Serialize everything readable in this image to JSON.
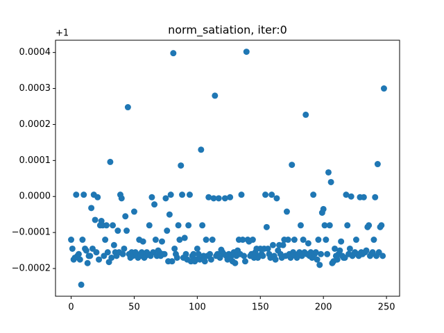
{
  "chart_data": {
    "type": "scatter",
    "title": "norm_satiation, iter:0",
    "y_offset_label": "+1",
    "color": "#1f77b4",
    "x": [
      0,
      1,
      2,
      3,
      4,
      5,
      6,
      7,
      8,
      9,
      10,
      11,
      12,
      13,
      14,
      15,
      16,
      17,
      18,
      19,
      20,
      21,
      22,
      23,
      24,
      25,
      26,
      27,
      28,
      29,
      30,
      31,
      32,
      33,
      34,
      35,
      36,
      37,
      38,
      39,
      40,
      41,
      42,
      43,
      44,
      45,
      46,
      47,
      48,
      49,
      50,
      51,
      52,
      53,
      54,
      55,
      56,
      57,
      58,
      59,
      60,
      61,
      62,
      63,
      64,
      65,
      66,
      67,
      68,
      69,
      70,
      71,
      72,
      73,
      74,
      75,
      76,
      77,
      78,
      79,
      80,
      81,
      82,
      83,
      84,
      85,
      86,
      87,
      88,
      89,
      90,
      91,
      92,
      93,
      94,
      95,
      96,
      97,
      98,
      99,
      100,
      101,
      102,
      103,
      104,
      105,
      106,
      107,
      108,
      109,
      110,
      111,
      112,
      113,
      114,
      115,
      116,
      117,
      118,
      119,
      120,
      121,
      122,
      123,
      124,
      125,
      126,
      127,
      128,
      129,
      130,
      131,
      132,
      133,
      134,
      135,
      136,
      137,
      138,
      139,
      140,
      141,
      142,
      143,
      144,
      145,
      146,
      147,
      148,
      149,
      150,
      151,
      152,
      153,
      154,
      155,
      156,
      157,
      158,
      159,
      160,
      161,
      162,
      163,
      164,
      165,
      166,
      167,
      168,
      169,
      170,
      171,
      172,
      173,
      174,
      175,
      176,
      177,
      178,
      179,
      180,
      181,
      182,
      183,
      184,
      185,
      186,
      187,
      188,
      189,
      190,
      191,
      192,
      193,
      194,
      195,
      196,
      197,
      198,
      199,
      200,
      201,
      202,
      203,
      204,
      205,
      206,
      207,
      208,
      209,
      210,
      211,
      212,
      213,
      214,
      215,
      216,
      217,
      218,
      219,
      220,
      221,
      222,
      223,
      224,
      225,
      226,
      227,
      228,
      229,
      230,
      231,
      232,
      233,
      234,
      235,
      236,
      237,
      238,
      239,
      240,
      241,
      242,
      243,
      244,
      245,
      246,
      247,
      248
    ],
    "values": [
      -0.00012,
      -0.000145,
      -0.000175,
      -0.00017,
      5e-06,
      -0.000165,
      -0.00016,
      -0.000175,
      -0.000245,
      -0.00012,
      5e-06,
      -0.000145,
      -0.00015,
      -0.000185,
      -0.000165,
      -0.000165,
      -3.2e-05,
      -0.000145,
      5e-06,
      -6.5e-05,
      -0.000155,
      -2e-06,
      -0.000175,
      -8e-05,
      -6.8e-05,
      -8e-05,
      -0.000165,
      -0.00012,
      -8e-05,
      -0.000155,
      -0.000182,
      9.6e-05,
      -0.00017,
      -8e-05,
      -0.000135,
      -0.000155,
      -0.000165,
      -9.5e-05,
      -0.000155,
      5e-06,
      -5e-06,
      -0.00016,
      -0.000145,
      -5.5e-05,
      -9.5e-05,
      0.000248,
      -0.00016,
      -0.00017,
      -0.000155,
      -0.000165,
      -4.2e-05,
      -0.000155,
      -0.00016,
      -0.00017,
      -0.00012,
      -0.000165,
      -0.000155,
      -0.000125,
      -0.00017,
      -0.000165,
      -0.000155,
      -0.00016,
      -8e-05,
      -0.000165,
      -2e-06,
      -0.000155,
      -2.2e-05,
      -0.00012,
      -0.000165,
      -0.00015,
      -0.000155,
      -0.000165,
      -0.000125,
      -0.00016,
      -0.00016,
      -5e-06,
      -9.5e-05,
      -0.00018,
      -5e-05,
      5e-06,
      -0.00018,
      0.000398,
      -0.000145,
      -0.00016,
      -0.00017,
      -8e-05,
      -0.00012,
      8.6e-05,
      5e-06,
      -0.00017,
      -0.000115,
      -0.00016,
      -0.000175,
      -8e-05,
      5e-06,
      -0.00018,
      -0.000165,
      -0.00016,
      -0.00018,
      -0.000175,
      -0.000145,
      -0.00016,
      -0.000175,
      0.00013,
      -8e-05,
      -0.000165,
      -0.00018,
      -0.00012,
      -0.000165,
      -2e-06,
      -0.00016,
      -0.000175,
      -0.00012,
      -5e-06,
      0.00028,
      -0.000165,
      -0.00016,
      -5e-06,
      -0.00017,
      -0.000148,
      -0.000155,
      -0.00016,
      -5e-06,
      -0.000165,
      -0.000175,
      -0.00016,
      -2e-06,
      -0.000165,
      -0.00018,
      -0.000155,
      -0.000185,
      -0.000165,
      -0.00015,
      -0.00012,
      -0.00016,
      5e-06,
      -0.00012,
      -0.000165,
      -0.00018,
      0.000402,
      -0.00012,
      -0.000125,
      -0.000165,
      -0.00016,
      -0.00012,
      -0.00017,
      -0.000155,
      -0.000145,
      -0.00017,
      -0.000165,
      -0.000145,
      -0.00016,
      -0.000165,
      -0.000145,
      5e-06,
      -8.5e-05,
      -0.000145,
      -0.00016,
      -0.00017,
      5e-06,
      -0.000135,
      -0.000165,
      -0.000175,
      -5e-06,
      -0.00015,
      -0.000135,
      -0.00016,
      -0.00017,
      -0.000135,
      -0.00012,
      -0.000165,
      -4.2e-05,
      -0.00012,
      -0.00016,
      -0.00017,
      8.8e-05,
      -0.000155,
      -0.00012,
      -0.000165,
      -0.00017,
      -0.00016,
      -0.000155,
      -8e-05,
      -0.000165,
      -0.00012,
      -0.000155,
      0.000227,
      -0.00016,
      -0.00013,
      -0.000165,
      -0.000155,
      -0.00017,
      5e-06,
      -0.00016,
      -0.000155,
      -0.000175,
      -0.00012,
      -0.00019,
      -0.00016,
      -4.5e-05,
      -3.5e-05,
      -8e-05,
      -0.00012,
      -0.00016,
      6.7e-05,
      -8e-05,
      4e-05,
      -0.000185,
      -0.00018,
      -0.000145,
      -0.000165,
      -0.000175,
      -0.00016,
      -0.00015,
      -0.000125,
      -0.000165,
      -0.00017,
      -0.00017,
      5e-06,
      -8e-05,
      -0.00016,
      -0.000145,
      0.0,
      -0.000165,
      -0.00016,
      -0.000155,
      -0.00012,
      -0.00016,
      -0.000165,
      -2e-06,
      -0.000155,
      -0.00016,
      -2e-06,
      -0.000155,
      -0.00015,
      -8.5e-05,
      -8e-05,
      -0.000165,
      -0.00016,
      -0.000155,
      -0.00012,
      -2e-06,
      -0.000165,
      9e-05,
      -0.000155,
      -8.5e-05,
      -8e-05,
      -0.000165,
      0.0003
    ],
    "xlim": [
      -12.4,
      260.4
    ],
    "ylim": [
      -0.000277,
      0.000434
    ],
    "xticks": [
      0,
      50,
      100,
      150,
      200,
      250
    ],
    "yticks": [
      {
        "value": -0.0002,
        "label": "−0.0002"
      },
      {
        "value": -0.0001,
        "label": "−0.0001"
      },
      {
        "value": 0,
        "label": "0.0000"
      },
      {
        "value": 0.0001,
        "label": "0.0001"
      },
      {
        "value": 0.0002,
        "label": "0.0002"
      },
      {
        "value": 0.0003,
        "label": "0.0003"
      },
      {
        "value": 0.0004,
        "label": "0.0004"
      }
    ]
  }
}
